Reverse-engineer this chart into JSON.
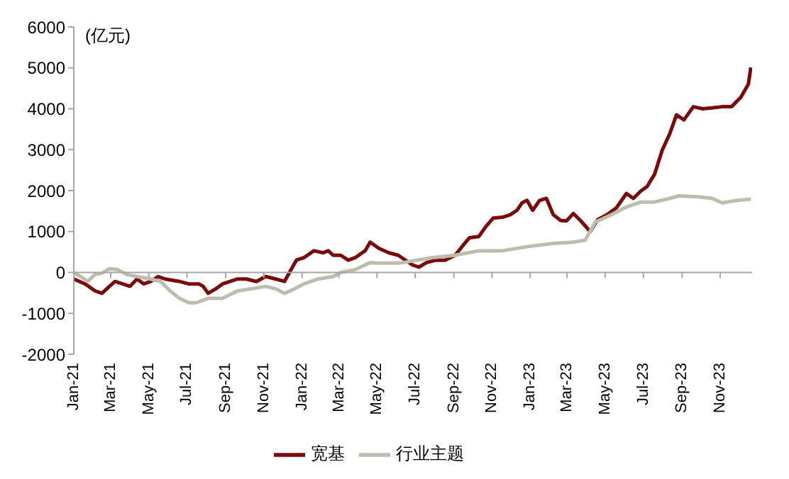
{
  "chart_data": {
    "type": "line",
    "ylabel": "(亿元)",
    "xlim": [
      "2021-01-01",
      "2023-12-22"
    ],
    "ylim": [
      -2000,
      6000
    ],
    "yticks": [
      -2000,
      -1000,
      0,
      1000,
      2000,
      3000,
      4000,
      5000,
      6000
    ],
    "xticks": [
      {
        "value": "2021-01-01",
        "label": "Jan-21"
      },
      {
        "value": "2021-03-01",
        "label": "Mar-21"
      },
      {
        "value": "2021-05-01",
        "label": "May-21"
      },
      {
        "value": "2021-07-01",
        "label": "Jul-21"
      },
      {
        "value": "2021-09-01",
        "label": "Sep-21"
      },
      {
        "value": "2021-11-01",
        "label": "Nov-21"
      },
      {
        "value": "2022-01-01",
        "label": "Jan-22"
      },
      {
        "value": "2022-03-01",
        "label": "Mar-22"
      },
      {
        "value": "2022-05-01",
        "label": "May-22"
      },
      {
        "value": "2022-07-01",
        "label": "Jul-22"
      },
      {
        "value": "2022-09-01",
        "label": "Sep-22"
      },
      {
        "value": "2022-11-01",
        "label": "Nov-22"
      },
      {
        "value": "2023-01-01",
        "label": "Jan-23"
      },
      {
        "value": "2023-03-01",
        "label": "Mar-23"
      },
      {
        "value": "2023-05-01",
        "label": "May-23"
      },
      {
        "value": "2023-07-01",
        "label": "Jul-23"
      },
      {
        "value": "2023-09-01",
        "label": "Sep-23"
      },
      {
        "value": "2023-11-01",
        "label": "Nov-23"
      }
    ],
    "legend": "bottom",
    "marker": "none",
    "line_style": "solid",
    "series": [
      {
        "name": "宽基",
        "color": "#7a0a0a",
        "x": [
          "2021-01-01",
          "2021-01-19",
          "2021-02-04",
          "2021-02-15",
          "2021-02-27",
          "2021-03-08",
          "2021-03-20",
          "2021-04-01",
          "2021-04-12",
          "2021-04-23",
          "2021-05-04",
          "2021-05-16",
          "2021-05-27",
          "2021-06-19",
          "2021-07-04",
          "2021-07-20",
          "2021-07-27",
          "2021-08-04",
          "2021-08-16",
          "2021-08-27",
          "2021-09-20",
          "2021-10-04",
          "2021-10-20",
          "2021-11-04",
          "2021-11-20",
          "2021-12-04",
          "2021-12-12",
          "2021-12-23",
          "2022-01-04",
          "2022-01-20",
          "2022-02-04",
          "2022-02-12",
          "2022-02-20",
          "2022-03-04",
          "2022-03-16",
          "2022-03-27",
          "2022-04-12",
          "2022-04-20",
          "2022-05-04",
          "2022-05-20",
          "2022-06-04",
          "2022-06-26",
          "2022-07-07",
          "2022-07-19",
          "2022-08-03",
          "2022-08-18",
          "2022-09-03",
          "2022-09-15",
          "2022-09-26",
          "2022-10-11",
          "2022-10-22",
          "2022-11-03",
          "2022-11-18",
          "2022-11-30",
          "2022-12-11",
          "2022-12-19",
          "2022-12-27",
          "2023-01-05",
          "2023-01-16",
          "2023-01-27",
          "2023-02-07",
          "2023-02-19",
          "2023-02-28",
          "2023-03-11",
          "2023-03-23",
          "2023-04-07",
          "2023-04-19",
          "2023-05-04",
          "2023-05-19",
          "2023-06-04",
          "2023-06-15",
          "2023-06-27",
          "2023-07-07",
          "2023-07-19",
          "2023-07-31",
          "2023-08-12",
          "2023-08-23",
          "2023-09-04",
          "2023-09-19",
          "2023-10-04",
          "2023-10-19",
          "2023-11-04",
          "2023-11-19",
          "2023-12-04",
          "2023-12-16",
          "2023-12-20"
        ],
        "values": [
          -160,
          -280,
          -450,
          -510,
          -340,
          -220,
          -280,
          -340,
          -160,
          -280,
          -220,
          -100,
          -160,
          -220,
          -280,
          -280,
          -340,
          -510,
          -400,
          -280,
          -160,
          -160,
          -220,
          -100,
          -160,
          -220,
          0,
          300,
          360,
          530,
          480,
          530,
          420,
          420,
          300,
          360,
          530,
          740,
          590,
          480,
          420,
          190,
          130,
          240,
          300,
          300,
          420,
          650,
          850,
          880,
          1120,
          1330,
          1350,
          1410,
          1520,
          1700,
          1760,
          1520,
          1760,
          1810,
          1410,
          1270,
          1260,
          1440,
          1260,
          1000,
          1290,
          1410,
          1580,
          1930,
          1810,
          1990,
          2100,
          2400,
          2980,
          3380,
          3850,
          3730,
          4050,
          4000,
          4020,
          4050,
          4050,
          4280,
          4600,
          5010
        ]
      },
      {
        "name": "行业主题",
        "color": "#bdbdae",
        "x": [
          "2021-01-01",
          "2021-01-12",
          "2021-01-23",
          "2021-02-04",
          "2021-02-15",
          "2021-02-27",
          "2021-03-12",
          "2021-03-27",
          "2021-04-12",
          "2021-05-04",
          "2021-05-20",
          "2021-06-04",
          "2021-06-19",
          "2021-07-04",
          "2021-07-16",
          "2021-08-04",
          "2021-08-27",
          "2021-09-20",
          "2021-10-12",
          "2021-11-04",
          "2021-11-20",
          "2021-12-04",
          "2021-12-20",
          "2022-01-04",
          "2022-01-27",
          "2022-02-20",
          "2022-03-04",
          "2022-03-27",
          "2022-04-20",
          "2022-05-04",
          "2022-06-04",
          "2022-06-11",
          "2022-07-27",
          "2022-09-03",
          "2022-10-11",
          "2022-11-18",
          "2022-12-27",
          "2023-02-07",
          "2023-03-11",
          "2023-03-30",
          "2023-04-15",
          "2023-05-11",
          "2023-06-04",
          "2023-06-27",
          "2023-07-19",
          "2023-08-12",
          "2023-08-27",
          "2023-09-27",
          "2023-10-19",
          "2023-11-04",
          "2023-11-27",
          "2023-12-20"
        ],
        "values": [
          0,
          -100,
          -220,
          -50,
          -20,
          90,
          70,
          -50,
          -100,
          -160,
          -220,
          -450,
          -630,
          -740,
          -740,
          -630,
          -630,
          -450,
          -400,
          -340,
          -400,
          -510,
          -400,
          -280,
          -160,
          -100,
          0,
          70,
          240,
          230,
          230,
          240,
          360,
          420,
          530,
          530,
          630,
          710,
          740,
          790,
          1230,
          1410,
          1600,
          1720,
          1720,
          1810,
          1870,
          1850,
          1810,
          1700,
          1760,
          1790
        ]
      }
    ]
  }
}
